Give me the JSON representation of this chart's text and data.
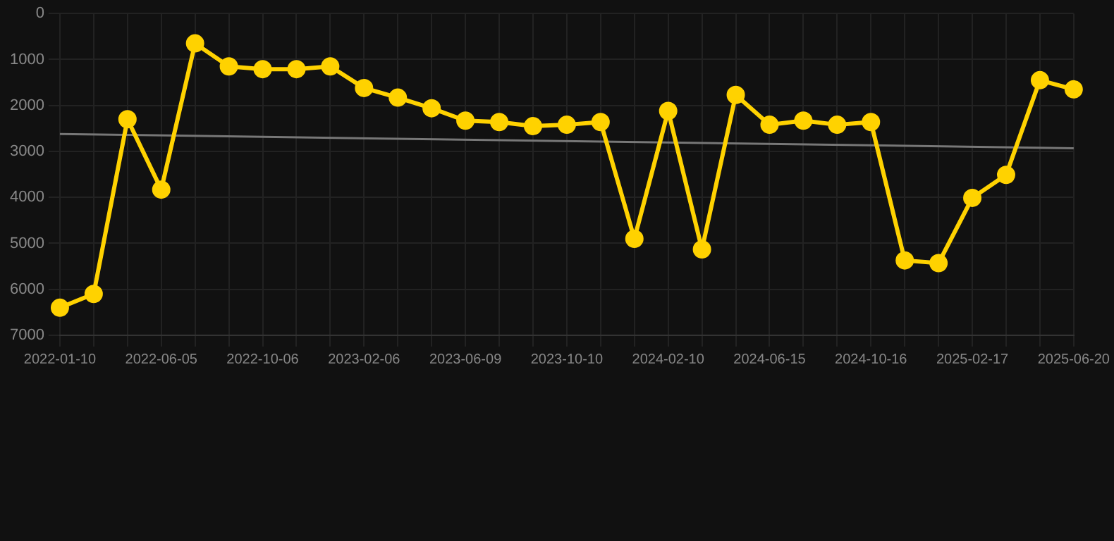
{
  "chart_data": {
    "type": "line",
    "categories": [
      "2022-01-10",
      null,
      null,
      "2022-06-05",
      null,
      null,
      "2022-10-06",
      null,
      null,
      "2023-02-06",
      null,
      null,
      "2023-06-09",
      null,
      null,
      "2023-10-10",
      null,
      null,
      "2024-02-10",
      null,
      null,
      "2024-06-15",
      null,
      null,
      "2024-10-16",
      null,
      null,
      "2025-02-17",
      null,
      null,
      "2025-06-20"
    ],
    "series": [
      {
        "color": "#ffd200",
        "marker": "circle",
        "values": [
          6400,
          6100,
          2300,
          3830,
          650,
          1150,
          1210,
          1210,
          1150,
          1620,
          1830,
          2060,
          2330,
          2360,
          2450,
          2420,
          2360,
          4900,
          2120,
          5130,
          1770,
          2420,
          2330,
          2420,
          2360,
          5370,
          5430,
          4010,
          3510,
          1450,
          1650
        ]
      },
      {
        "type": "line",
        "color": "#777777",
        "marker": "none",
        "values": [
          2620,
          null,
          null,
          null,
          null,
          null,
          null,
          null,
          null,
          null,
          null,
          null,
          null,
          null,
          null,
          null,
          null,
          null,
          null,
          null,
          null,
          null,
          null,
          null,
          null,
          null,
          null,
          null,
          null,
          null,
          2930
        ]
      }
    ],
    "ylim": [
      7000,
      0
    ],
    "yticks": [
      0,
      1000,
      2000,
      3000,
      4000,
      5000,
      6000,
      7000
    ],
    "grid": true,
    "legend": false
  }
}
